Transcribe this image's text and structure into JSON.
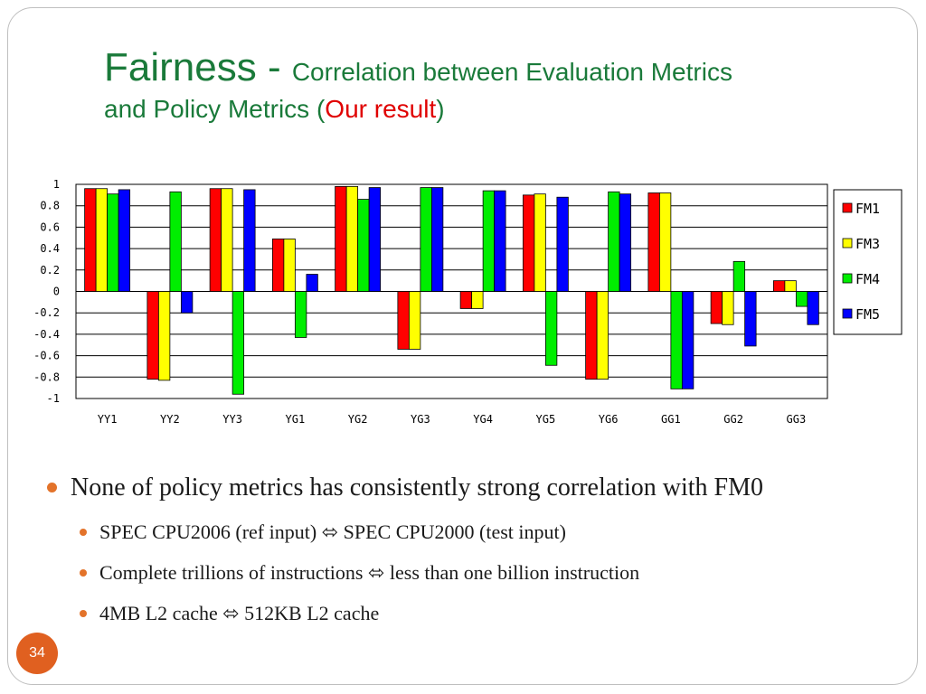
{
  "slide": {
    "title_main": "Fairness - ",
    "title_sub": "Correlation between Evaluation Metrics",
    "title_line2_pre": "and Policy Metrics (",
    "title_line2_red": "Our result",
    "title_line2_post": ")",
    "page_number": "34",
    "accent_color": "#e06020",
    "title_color": "#1a7a3a"
  },
  "bullets": {
    "main": "None of policy metrics has consistently strong correlation with FM0",
    "sub": [
      {
        "left": "SPEC CPU2006 (ref input)",
        "arrow": "⬄",
        "right": "SPEC CPU2000 (test input)"
      },
      {
        "left": "Complete trillions of instructions",
        "arrow": "⬄",
        "right": "less than one billion instruction"
      },
      {
        "left": "4MB L2 cache",
        "arrow": "⬄",
        "right": "512KB L2 cache"
      }
    ]
  },
  "chart_data": {
    "type": "bar",
    "categories": [
      "YY1",
      "YY2",
      "YY3",
      "YG1",
      "YG2",
      "YG3",
      "YG4",
      "YG5",
      "YG6",
      "GG1",
      "GG2",
      "GG3"
    ],
    "series": [
      {
        "name": "FM1",
        "color": "#ff0000",
        "values": [
          0.96,
          -0.82,
          0.96,
          0.49,
          0.98,
          -0.54,
          -0.16,
          0.9,
          -0.82,
          0.92,
          -0.3,
          0.1
        ]
      },
      {
        "name": "FM3",
        "color": "#ffff00",
        "values": [
          0.96,
          -0.83,
          0.96,
          0.49,
          0.98,
          -0.54,
          -0.16,
          0.91,
          -0.82,
          0.92,
          -0.31,
          0.1
        ]
      },
      {
        "name": "FM4",
        "color": "#00ee00",
        "values": [
          0.91,
          0.93,
          -0.96,
          -0.43,
          0.86,
          0.97,
          0.94,
          -0.69,
          0.93,
          -0.91,
          0.28,
          -0.14
        ]
      },
      {
        "name": "FM5",
        "color": "#0000ff",
        "values": [
          0.95,
          -0.2,
          0.95,
          0.16,
          0.97,
          0.97,
          0.94,
          0.88,
          0.91,
          -0.91,
          -0.51,
          -0.31
        ]
      }
    ],
    "ylim": [
      -1,
      1
    ],
    "yticks": [
      "1",
      "0.8",
      "0.6",
      "0.4",
      "0.2",
      "0",
      "-0.2",
      "-0.4",
      "-0.6",
      "-0.8",
      "-1"
    ],
    "grid": true,
    "legend": "right"
  }
}
